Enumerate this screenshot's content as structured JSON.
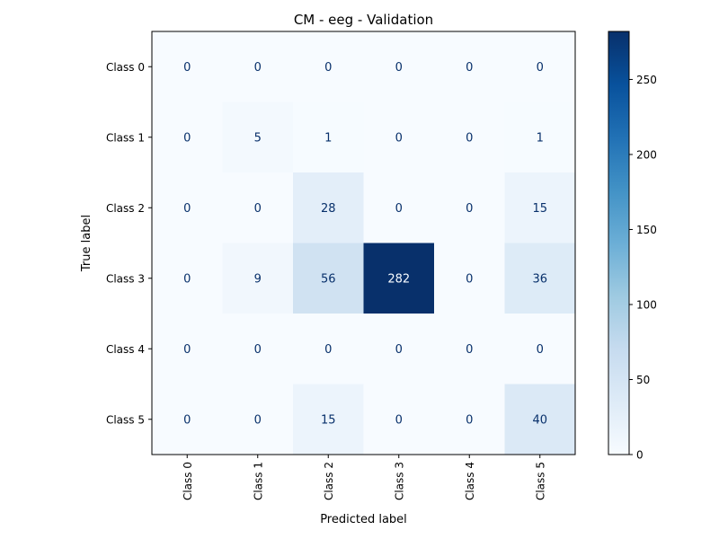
{
  "chart_data": {
    "type": "heatmap",
    "title": "CM - eeg - Validation",
    "xlabel": "Predicted label",
    "ylabel": "True label",
    "x_categories": [
      "Class 0",
      "Class 1",
      "Class 2",
      "Class 3",
      "Class 4",
      "Class 5"
    ],
    "y_categories": [
      "Class 0",
      "Class 1",
      "Class 2",
      "Class 3",
      "Class 4",
      "Class 5"
    ],
    "values": [
      [
        0,
        0,
        0,
        0,
        0,
        0
      ],
      [
        0,
        5,
        1,
        0,
        0,
        1
      ],
      [
        0,
        0,
        28,
        0,
        0,
        15
      ],
      [
        0,
        9,
        56,
        282,
        0,
        36
      ],
      [
        0,
        0,
        0,
        0,
        0,
        0
      ],
      [
        0,
        0,
        15,
        0,
        0,
        40
      ]
    ],
    "colorscale": "Blues",
    "colorbar": {
      "range": [
        0,
        282
      ],
      "ticks": [
        0,
        50,
        100,
        150,
        200,
        250
      ]
    }
  }
}
